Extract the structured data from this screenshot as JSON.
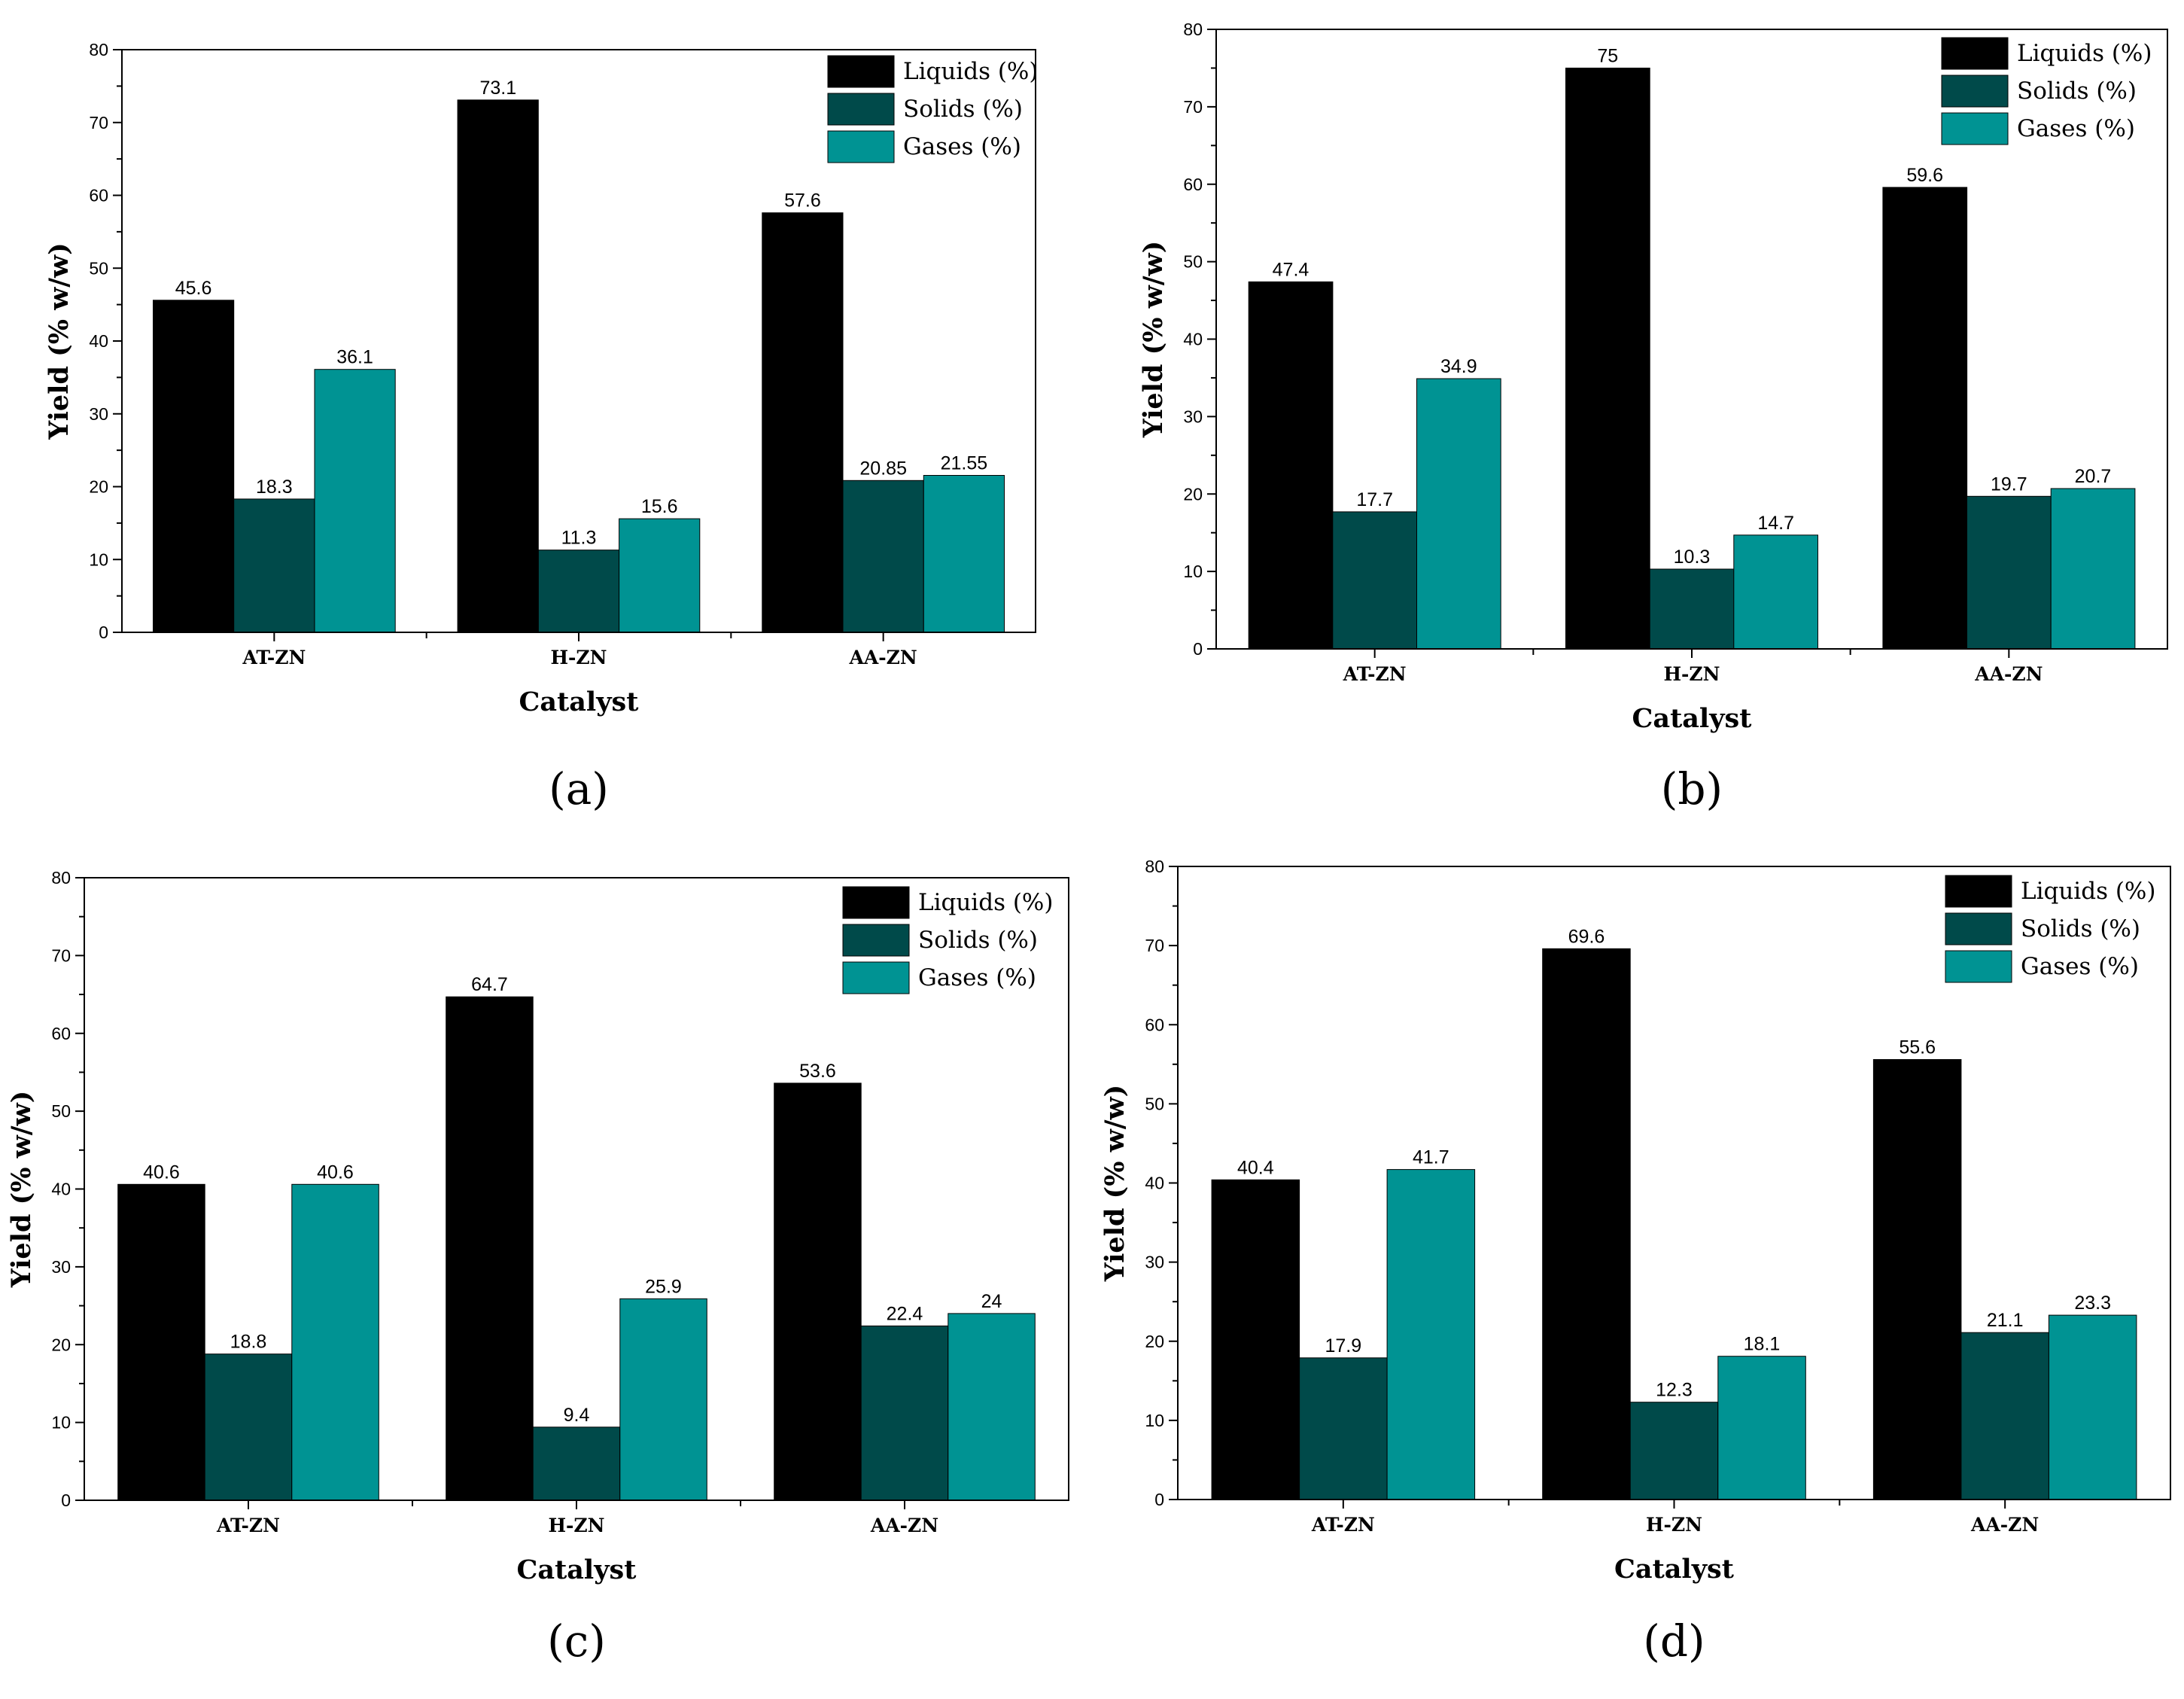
{
  "colors": {
    "Liquids": "#000000",
    "Solids": "#004a4a",
    "Gases": "#009393"
  },
  "panels": [
    {
      "label": "(a)"
    },
    {
      "label": "(b)"
    },
    {
      "label": "(c)"
    },
    {
      "label": "(d)"
    }
  ],
  "chart_data": [
    {
      "type": "bar",
      "categories": [
        "AT-ZN",
        "H-ZN",
        "AA-ZN"
      ],
      "xlabel": "Catalyst",
      "ylabel": "Yield (% w/w)",
      "ylim": [
        0,
        80
      ],
      "yticks": [
        0,
        10,
        20,
        30,
        40,
        50,
        60,
        70,
        80
      ],
      "legend": "top-right",
      "series": [
        {
          "name": "Liquids (%)",
          "values": [
            45.6,
            73.1,
            57.6
          ],
          "labels": [
            "45.6",
            "73.1",
            "57.6"
          ]
        },
        {
          "name": "Solids (%)",
          "values": [
            18.3,
            11.3,
            20.85
          ],
          "labels": [
            "18.3",
            "11.3",
            "20.85"
          ]
        },
        {
          "name": "Gases (%)",
          "values": [
            36.1,
            15.6,
            21.55
          ],
          "labels": [
            "36.1",
            "15.6",
            "21.55"
          ]
        }
      ]
    },
    {
      "type": "bar",
      "categories": [
        "AT-ZN",
        "H-ZN",
        "AA-ZN"
      ],
      "xlabel": "Catalyst",
      "ylabel": "Yield (% w/w)",
      "ylim": [
        0,
        80
      ],
      "yticks": [
        0,
        10,
        20,
        30,
        40,
        50,
        60,
        70,
        80
      ],
      "legend": "top-right",
      "series": [
        {
          "name": "Liquids (%)",
          "values": [
            47.4,
            75,
            59.6
          ],
          "labels": [
            "47.4",
            "75",
            "59.6"
          ]
        },
        {
          "name": "Solids (%)",
          "values": [
            17.7,
            10.3,
            19.7
          ],
          "labels": [
            "17.7",
            "10.3",
            "19.7"
          ]
        },
        {
          "name": "Gases (%)",
          "values": [
            34.9,
            14.7,
            20.7
          ],
          "labels": [
            "34.9",
            "14.7",
            "20.7"
          ]
        }
      ]
    },
    {
      "type": "bar",
      "categories": [
        "AT-ZN",
        "H-ZN",
        "AA-ZN"
      ],
      "xlabel": "Catalyst",
      "ylabel": "Yield (% w/w)",
      "ylim": [
        0,
        80
      ],
      "yticks": [
        0,
        10,
        20,
        30,
        40,
        50,
        60,
        70,
        80
      ],
      "legend": "top-right",
      "series": [
        {
          "name": "Liquids (%)",
          "values": [
            40.6,
            64.7,
            53.6
          ],
          "labels": [
            "40.6",
            "64.7",
            "53.6"
          ]
        },
        {
          "name": "Solids (%)",
          "values": [
            18.8,
            9.4,
            22.4
          ],
          "labels": [
            "18.8",
            "9.4",
            "22.4"
          ]
        },
        {
          "name": "Gases (%)",
          "values": [
            40.6,
            25.9,
            24
          ],
          "labels": [
            "40.6",
            "25.9",
            "24"
          ]
        }
      ]
    },
    {
      "type": "bar",
      "categories": [
        "AT-ZN",
        "H-ZN",
        "AA-ZN"
      ],
      "xlabel": "Catalyst",
      "ylabel": "Yield (% w/w)",
      "ylim": [
        0,
        80
      ],
      "yticks": [
        0,
        10,
        20,
        30,
        40,
        50,
        60,
        70,
        80
      ],
      "legend": "top-right",
      "series": [
        {
          "name": "Liquids (%)",
          "values": [
            40.4,
            69.6,
            55.6
          ],
          "labels": [
            "40.4",
            "69.6",
            "55.6"
          ]
        },
        {
          "name": "Solids (%)",
          "values": [
            17.9,
            12.3,
            21.1
          ],
          "labels": [
            "17.9",
            "12.3",
            "21.1"
          ]
        },
        {
          "name": "Gases (%)",
          "values": [
            41.7,
            18.1,
            23.3
          ],
          "labels": [
            "41.7",
            "18.1",
            "23.3"
          ]
        }
      ]
    }
  ]
}
